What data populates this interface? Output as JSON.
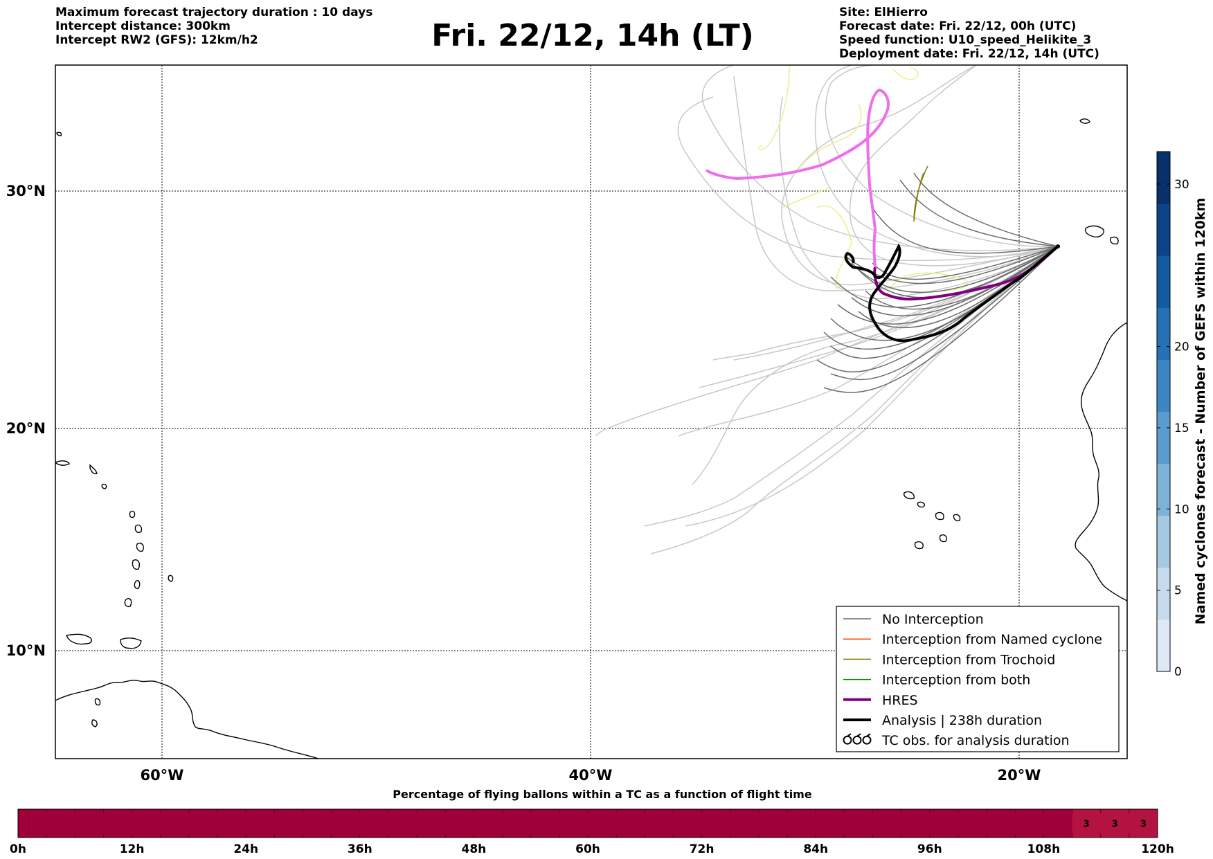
{
  "header": {
    "left_lines": [
      "Maximum forecast trajectory duration : 10 days",
      "Intercept distance: 300km",
      "Intercept RW2 (GFS):  12km/h2"
    ],
    "title": "Fri. 22/12, 14h (LT)",
    "right_lines": [
      "Site: ElHierro",
      "Forecast date: Fri. 22/12, 00h (UTC)",
      "Speed function: U10_speed_Helikite_3",
      "Deployment date: Fri. 22/12, 14h (UTC)"
    ]
  },
  "map": {
    "lon_range": [
      -65,
      -15
    ],
    "lat_range": [
      5,
      34.5
    ],
    "lat_labels": [
      "10°N",
      "20°N",
      "30°N"
    ],
    "lon_labels": [
      "60°W",
      "40°W",
      "20°W"
    ],
    "launch_site": {
      "lon": -18,
      "lat": 27.7
    }
  },
  "colors": {
    "ensemble_gray": "#c8c8c8",
    "no_interception": "#6b6b6b",
    "named_cyclone": "#ff4500",
    "trochoid": "#808000",
    "both": "#008000",
    "hres": "#800080",
    "hres_light": "#ee6eee",
    "analysis": "#000000",
    "yellow_track": "#eeee88",
    "bar_fill": "#a0003a",
    "bar_fill_light": "#b5133f"
  },
  "legend": {
    "items": [
      {
        "label": "No Interception",
        "style": "thin",
        "color": "#6b6b6b"
      },
      {
        "label": "Interception from Named cyclone",
        "style": "thin",
        "color": "#ff4500"
      },
      {
        "label": "Interception from Trochoid",
        "style": "thin",
        "color": "#808000"
      },
      {
        "label": "Interception from both",
        "style": "thin",
        "color": "#008000"
      },
      {
        "label": "HRES",
        "style": "thick",
        "color": "#800080"
      },
      {
        "label": "Analysis | 238h duration",
        "style": "thick",
        "color": "#000000"
      },
      {
        "label": "TC obs. for analysis duration",
        "style": "symbol",
        "color": "#000000"
      }
    ]
  },
  "colorbar": {
    "label": "Named cyclones forecast - Number of GEFS within 120km",
    "min": 0,
    "max": 32,
    "ticks": [
      "0",
      "5",
      "10",
      "15",
      "20",
      "30"
    ],
    "colors": [
      "#dfe9f6",
      "#c6dbef",
      "#a6c9e3",
      "#7fb2d9",
      "#5a9ccd",
      "#3d86c2",
      "#2670b6",
      "#145aa3",
      "#0b4488",
      "#08306b"
    ]
  },
  "flight_bar": {
    "title": "Percentage of flying ballons within a TC as a function of flight time",
    "hours": 120,
    "ticks": [
      "0h",
      "12h",
      "24h",
      "36h",
      "48h",
      "60h",
      "72h",
      "84h",
      "96h",
      "108h",
      "120h"
    ],
    "annotations": [
      {
        "hour": 114,
        "text": "3"
      },
      {
        "hour": 117,
        "text": "3"
      },
      {
        "hour": 120,
        "text": "3"
      }
    ]
  }
}
